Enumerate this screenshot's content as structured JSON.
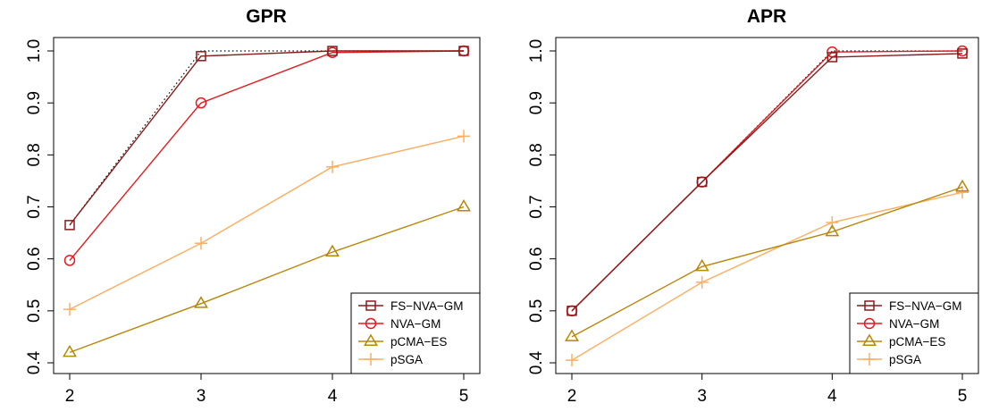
{
  "chart_data": [
    {
      "type": "line",
      "title": "GPR",
      "xlabel": "",
      "ylabel": "",
      "x": [
        2,
        3,
        4,
        5
      ],
      "xlim": [
        2,
        5
      ],
      "ylim": [
        0.4,
        1.0
      ],
      "x_ticks": [
        "2",
        "3",
        "4",
        "5"
      ],
      "y_ticks": [
        "0.4",
        "0.5",
        "0.6",
        "0.7",
        "0.8",
        "0.9",
        "1.0"
      ],
      "grid": false,
      "legend_position": "bottom-right",
      "series": [
        {
          "name": "FS−NVA−GM",
          "values": [
            0.665,
            0.99,
            1.0,
            1.0
          ],
          "color": "#8b1a1a",
          "marker": "square"
        },
        {
          "name": "NVA−GM",
          "values": [
            0.597,
            0.9,
            0.997,
            1.0
          ],
          "color": "#e41a1c",
          "marker": "circle"
        },
        {
          "name": "pCMA−ES",
          "values": [
            0.42,
            0.514,
            0.613,
            0.7
          ],
          "color": "#b8860b",
          "marker": "triangle"
        },
        {
          "name": "pSGA",
          "values": [
            0.503,
            0.63,
            0.777,
            0.836
          ],
          "color": "#fdae61",
          "marker": "plus"
        }
      ],
      "reference_line": {
        "values": [
          0.665,
          1.0,
          1.0,
          1.0
        ],
        "style": "dotted",
        "color": "#000000"
      }
    },
    {
      "type": "line",
      "title": "APR",
      "xlabel": "",
      "ylabel": "",
      "x": [
        2,
        3,
        4,
        5
      ],
      "xlim": [
        2,
        5
      ],
      "ylim": [
        0.4,
        1.0
      ],
      "x_ticks": [
        "2",
        "3",
        "4",
        "5"
      ],
      "y_ticks": [
        "0.4",
        "0.5",
        "0.6",
        "0.7",
        "0.8",
        "0.9",
        "1.0"
      ],
      "grid": false,
      "legend_position": "bottom-right",
      "series": [
        {
          "name": "FS−NVA−GM",
          "values": [
            0.5,
            0.748,
            0.988,
            0.995
          ],
          "color": "#8b1a1a",
          "marker": "square"
        },
        {
          "name": "NVA−GM",
          "values": [
            0.5,
            0.748,
            0.998,
            1.0
          ],
          "color": "#e41a1c",
          "marker": "circle"
        },
        {
          "name": "pCMA−ES",
          "values": [
            0.45,
            0.585,
            0.652,
            0.738
          ],
          "color": "#b8860b",
          "marker": "triangle"
        },
        {
          "name": "pSGA",
          "values": [
            0.405,
            0.555,
            0.67,
            0.728
          ],
          "color": "#fdae61",
          "marker": "plus"
        }
      ],
      "reference_line": {
        "values": [
          0.5,
          0.748,
          1.0,
          1.0
        ],
        "style": "dotted",
        "color": "#000000"
      }
    }
  ]
}
